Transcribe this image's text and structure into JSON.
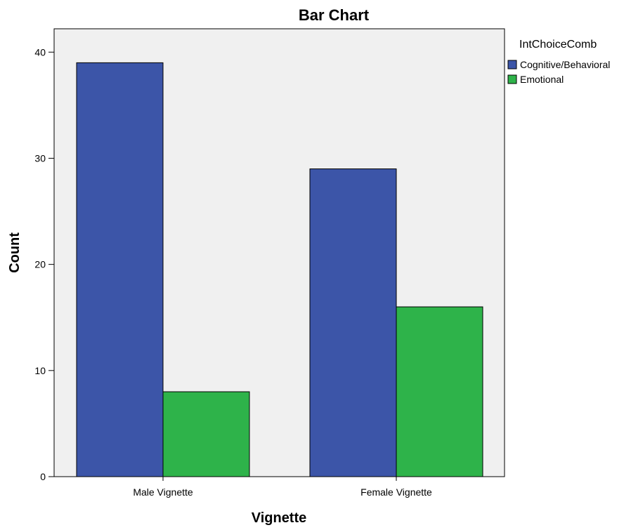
{
  "chart_data": {
    "type": "bar",
    "title": "Bar Chart",
    "xlabel": "Vignette",
    "ylabel": "Count",
    "categories": [
      "Male Vignette",
      "Female Vignette"
    ],
    "series": [
      {
        "name": "Cognitive/Behavioral",
        "values": [
          39,
          29
        ],
        "color": "#3c55a8"
      },
      {
        "name": "Emotional",
        "values": [
          8,
          16
        ],
        "color": "#2eb34a"
      }
    ],
    "ylim": [
      0,
      42.2
    ],
    "yticks": [
      0,
      10,
      20,
      30,
      40
    ],
    "legend": {
      "title": "IntChoiceComb",
      "position": "top-right"
    },
    "grid": false,
    "plot_background": "#f0f0f0"
  }
}
